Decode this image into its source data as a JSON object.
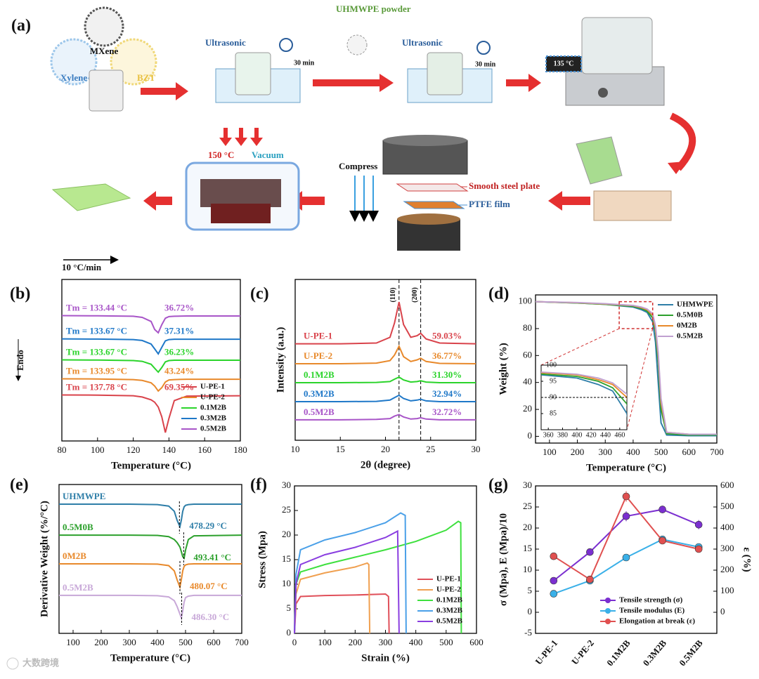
{
  "diagram": {
    "panel": "(a)",
    "mxene": "MXene",
    "xylene": "Xylene",
    "bzt": "BZT",
    "ultrasonic_1": "Ultrasonic",
    "time_1": "30 min",
    "powder": "UHMWPE powder",
    "ultrasonic_2": "Ultrasonic",
    "time_2": "30 min",
    "heater": "135 °C",
    "temp": "150 °C",
    "vacuum": "Vacuum",
    "compress": "Compress",
    "plate": "Smooth steel plate",
    "film": "PTFE film"
  },
  "watermark": "大数跨境",
  "chart_data": [
    {
      "type": "line",
      "panel": "(b)",
      "xlabel": "Temperature (°C)",
      "ylabel": "Endo",
      "rate": "10 °C/min",
      "xlim": [
        80,
        180
      ],
      "xticks": [
        80,
        100,
        120,
        140,
        160,
        180
      ],
      "ylim": [
        0,
        10
      ],
      "yticks": [],
      "legend": "lower right",
      "x": [
        80,
        100,
        120,
        125,
        130,
        132,
        134,
        136,
        138,
        140,
        143,
        150,
        180
      ],
      "series": [
        {
          "name": "U-PE-1",
          "color": "#d9434b",
          "values": [
            2.85,
            2.84,
            2.8,
            2.72,
            2.55,
            2.4,
            2.1,
            1.5,
            0.52,
            1.4,
            2.5,
            2.78,
            2.8
          ]
        },
        {
          "name": "U-PE-2",
          "color": "#e8892b",
          "values": [
            3.85,
            3.84,
            3.8,
            3.75,
            3.6,
            3.4,
            3.09,
            3.3,
            3.65,
            3.78,
            3.8,
            3.82,
            3.82
          ]
        },
        {
          "name": "0.1M2B",
          "color": "#2bd42b",
          "values": [
            5.02,
            5.01,
            4.98,
            4.93,
            4.75,
            4.5,
            4.26,
            4.55,
            4.9,
            4.98,
            5.0,
            5.0,
            5.0
          ]
        },
        {
          "name": "0.3M2B",
          "color": "#1f78c8",
          "values": [
            6.32,
            6.31,
            6.28,
            6.22,
            6.0,
            5.7,
            5.39,
            5.8,
            6.2,
            6.28,
            6.3,
            6.3,
            6.3
          ]
        },
        {
          "name": "0.5M2B",
          "color": "#a855c8",
          "values": [
            7.76,
            7.75,
            7.72,
            7.65,
            7.4,
            6.9,
            6.7,
            7.2,
            7.6,
            7.7,
            7.72,
            7.74,
            7.74
          ]
        }
      ],
      "annotations": [
        {
          "tm": "Tm = 133.44 °C",
          "pct": "36.72%"
        },
        {
          "tm": "Tm = 133.67 °C",
          "pct": "37.31%"
        },
        {
          "tm": "Tm = 133.67 °C",
          "pct": "36.23%"
        },
        {
          "tm": "Tm = 133.95 °C",
          "pct": "43.24%"
        },
        {
          "tm": "Tm = 137.78 °C",
          "pct": "69.35%"
        }
      ]
    },
    {
      "type": "line",
      "panel": "(c)",
      "xlabel": "2θ (degree)",
      "ylabel": "Intensity (a.u.)",
      "xlim": [
        10,
        30
      ],
      "xticks": [
        10,
        15,
        20,
        25,
        30
      ],
      "ylim": [
        0,
        10
      ],
      "yticks": [],
      "legend": "inline",
      "x": [
        10,
        15,
        19,
        20.5,
        21,
        21.5,
        22,
        22.8,
        23.5,
        23.9,
        24.5,
        26,
        30
      ],
      "series": [
        {
          "name": "U-PE-1",
          "color": "#d9434b",
          "values": [
            6.0,
            6.0,
            6.05,
            6.4,
            7.3,
            8.6,
            7.2,
            6.4,
            6.5,
            6.65,
            6.3,
            6.05,
            6.0
          ]
        },
        {
          "name": "U-PE-2",
          "color": "#e8892b",
          "values": [
            4.76,
            4.76,
            4.8,
            4.95,
            5.3,
            5.85,
            5.2,
            4.9,
            5.0,
            5.1,
            4.9,
            4.78,
            4.76
          ]
        },
        {
          "name": "0.1M2B",
          "color": "#2bd42b",
          "values": [
            3.58,
            3.58,
            3.6,
            3.65,
            3.8,
            3.93,
            3.75,
            3.62,
            3.65,
            3.7,
            3.62,
            3.58,
            3.58
          ]
        },
        {
          "name": "0.3M2B",
          "color": "#1f78c8",
          "values": [
            2.4,
            2.4,
            2.42,
            2.5,
            2.65,
            2.8,
            2.6,
            2.45,
            2.5,
            2.55,
            2.45,
            2.4,
            2.4
          ]
        },
        {
          "name": "0.5M2B",
          "color": "#a855c8",
          "values": [
            1.27,
            1.27,
            1.3,
            1.35,
            1.5,
            1.6,
            1.45,
            1.32,
            1.35,
            1.4,
            1.32,
            1.27,
            1.27
          ]
        }
      ],
      "labels": [
        "59.03%",
        "36.77%",
        "31.30%",
        "32.94%",
        "32.72%"
      ],
      "peaks": [
        {
          "value": 21.5,
          "label": "(110)"
        },
        {
          "value": 23.9,
          "label": "(200)"
        }
      ]
    },
    {
      "type": "line",
      "panel": "(d)",
      "xlabel": "Temperature (°C)",
      "ylabel": "Weight (%)",
      "xlim": [
        50,
        700
      ],
      "xticks": [
        100,
        200,
        300,
        400,
        500,
        600,
        700
      ],
      "ylim": [
        -5,
        105
      ],
      "yticks": [
        0,
        20,
        40,
        60,
        80,
        100
      ],
      "legend": "upper right",
      "x": [
        50,
        200,
        300,
        400,
        430,
        450,
        470,
        480,
        490,
        500,
        520,
        600,
        700
      ],
      "series": [
        {
          "name": "UHMWPE",
          "color": "#2e7ea8",
          "values": [
            100,
            99,
            98,
            96,
            94,
            92,
            85,
            70,
            40,
            10,
            1,
            0.5,
            0.5
          ]
        },
        {
          "name": "0.5M0B",
          "color": "#2ca02c",
          "values": [
            100,
            99,
            98,
            96.5,
            95,
            93,
            88,
            78,
            55,
            20,
            2,
            1,
            1
          ]
        },
        {
          "name": "0M2B",
          "color": "#e8892b",
          "values": [
            100,
            99.2,
            98.3,
            97,
            95.5,
            94,
            90,
            80,
            60,
            25,
            3,
            1.5,
            1.5
          ]
        },
        {
          "name": "0.5M2B",
          "color": "#c0a0d0",
          "values": [
            100,
            99.3,
            98.5,
            97.2,
            96,
            94.5,
            91,
            82,
            62,
            28,
            3,
            1.5,
            1.5
          ]
        }
      ],
      "inset": {
        "xlim": [
          350,
          470
        ],
        "xticks": [
          360,
          380,
          400,
          420,
          440,
          460
        ],
        "ylim": [
          80,
          100
        ],
        "yticks": [
          85,
          90,
          95,
          100
        ],
        "reference_line": 90
      }
    },
    {
      "type": "line",
      "panel": "(e)",
      "xlabel": "Temperature (°C)",
      "ylabel": "Derivative Weight (%/°C)",
      "xlim": [
        50,
        700
      ],
      "xticks": [
        100,
        200,
        300,
        400,
        500,
        600,
        700
      ],
      "ylim": [
        0,
        10
      ],
      "yticks": [],
      "legend": "inline",
      "x": [
        50,
        300,
        400,
        440,
        460,
        470,
        480,
        485,
        490,
        495,
        500,
        510,
        530,
        700
      ],
      "series": [
        {
          "name": "UHMWPE",
          "color": "#2e7ea8",
          "values": [
            8.68,
            8.68,
            8.65,
            8.55,
            8.2,
            7.6,
            7.17,
            7.6,
            8.2,
            8.5,
            8.6,
            8.65,
            8.68,
            8.68
          ]
        },
        {
          "name": "0.5M0B",
          "color": "#2ca02c",
          "values": [
            6.6,
            6.6,
            6.58,
            6.5,
            6.3,
            6.1,
            5.8,
            5.5,
            5.15,
            5.05,
            5.6,
            6.3,
            6.55,
            6.6
          ]
        },
        {
          "name": "0M2B",
          "color": "#e8892b",
          "values": [
            4.67,
            4.67,
            4.65,
            4.55,
            4.2,
            3.6,
            3.11,
            3.6,
            4.2,
            4.5,
            4.6,
            4.65,
            4.67,
            4.67
          ]
        },
        {
          "name": "0.5M2B",
          "color": "#c8a8d8",
          "values": [
            2.55,
            2.55,
            2.53,
            2.45,
            2.2,
            1.8,
            1.3,
            1.04,
            1.5,
            2.1,
            2.4,
            2.5,
            2.55,
            2.55
          ]
        }
      ],
      "annotations": [
        {
          "value": 478.29,
          "label": "478.29 °C"
        },
        {
          "value": 493.41,
          "label": "493.41 °C"
        },
        {
          "value": 480.07,
          "label": "480.07 °C"
        },
        {
          "value": 486.3,
          "label": "486.30 °C"
        }
      ]
    },
    {
      "type": "line",
      "panel": "(f)",
      "xlabel": "Strain (%)",
      "ylabel": "Stress (Mpa)",
      "xlim": [
        0,
        600
      ],
      "xticks": [
        0,
        100,
        200,
        300,
        400,
        500,
        600
      ],
      "ylim": [
        0,
        30
      ],
      "yticks": [
        0,
        5,
        10,
        15,
        20,
        25,
        30
      ],
      "legend": "lower right",
      "series": [
        {
          "name": "U-PE-1",
          "color": "#e0505a",
          "x": [
            0,
            5,
            20,
            100,
            200,
            300,
            310,
            312
          ],
          "values": [
            0,
            6,
            7.5,
            7.7,
            7.8,
            8,
            7.5,
            0
          ]
        },
        {
          "name": "U-PE-2",
          "color": "#f0a050",
          "x": [
            0,
            5,
            20,
            100,
            200,
            240,
            245,
            248
          ],
          "values": [
            0,
            8,
            11,
            12.3,
            13.5,
            14.3,
            14,
            0
          ]
        },
        {
          "name": "0.1M2B",
          "color": "#3ee03e",
          "x": [
            0,
            5,
            20,
            100,
            200,
            300,
            400,
            500,
            540,
            548,
            550
          ],
          "values": [
            0,
            10,
            12.5,
            14,
            15.5,
            17,
            18.7,
            21,
            22.8,
            22.5,
            0
          ]
        },
        {
          "name": "0.3M2B",
          "color": "#4aa0e8",
          "x": [
            0,
            5,
            20,
            100,
            200,
            300,
            350,
            365,
            368
          ],
          "values": [
            0,
            12,
            17,
            19,
            20.5,
            22.5,
            24.5,
            24,
            0
          ]
        },
        {
          "name": "0.5M2B",
          "color": "#8a3ee0",
          "x": [
            0,
            5,
            20,
            100,
            200,
            300,
            340,
            345
          ],
          "values": [
            0,
            10,
            14,
            16,
            17.5,
            19.5,
            20.8,
            0
          ]
        }
      ]
    },
    {
      "type": "line",
      "panel": "(g)",
      "ylabel": "σ (Mpa), E (Mpa)/10",
      "y2label": "ε (%)",
      "categories": [
        "U-PE-1",
        "U-PE-2",
        "0.1M2B",
        "0.3M2B",
        "0.5M2B"
      ],
      "ylim": [
        -5,
        30
      ],
      "yticks": [
        -5,
        0,
        5,
        10,
        15,
        20,
        25,
        30
      ],
      "y2lim": [
        -100,
        600
      ],
      "y2ticks": [
        0,
        100,
        200,
        300,
        400,
        500,
        600
      ],
      "legend": "lower right",
      "series": [
        {
          "name": "Tensile strength (σ)",
          "color": "#7b2fd0",
          "values": [
            7.5,
            14.3,
            22.8,
            24.4,
            20.8
          ],
          "errors": [
            0.5,
            0.3,
            1.2,
            0.9,
            1.1
          ]
        },
        {
          "name": "Tensile modulus (E)",
          "color": "#3ab0e8",
          "values": [
            4.4,
            7.5,
            13,
            17.3,
            15.5
          ],
          "errors": [
            0.3,
            0.3,
            0.4,
            0.6,
            0.5
          ]
        },
        {
          "name": "Elongation at break (ε)",
          "color": "#e05050",
          "axis": "y2",
          "values": [
            266,
            156,
            550,
            340,
            300
          ],
          "errors": [
            6,
            6,
            25,
            8,
            8
          ]
        }
      ]
    }
  ]
}
